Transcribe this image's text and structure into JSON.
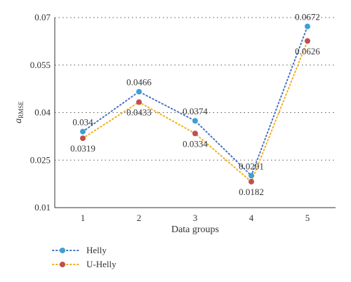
{
  "chart_data": {
    "type": "line",
    "categories": [
      "1",
      "2",
      "3",
      "4",
      "5"
    ],
    "xlabel": "Data groups",
    "ylabel_main": "a",
    "ylabel_sub": "RMSE",
    "ylim": [
      0.01,
      0.07
    ],
    "yticks": [
      0.01,
      0.025,
      0.04,
      0.055,
      0.07
    ],
    "ytick_labels": [
      "0.01",
      "0.025",
      "0.04",
      "0.055",
      "0.07"
    ],
    "grid": "horizontal dotted",
    "legend_placement": "bottom-left",
    "series": [
      {
        "name": "Helly",
        "values": [
          0.034,
          0.0466,
          0.0374,
          0.0201,
          0.0672
        ],
        "labels": [
          "0.034",
          "0.0466",
          "0.0374",
          "0.0201",
          "0.0672"
        ],
        "marker_color": "#3d9fd6",
        "line_color": "#4a72c4"
      },
      {
        "name": "U-Helly",
        "values": [
          0.0319,
          0.0433,
          0.0334,
          0.0182,
          0.0626
        ],
        "labels": [
          "0.0319",
          "0.0433",
          "0.0334",
          "0.0182",
          "0.0626"
        ],
        "marker_color": "#c0504d",
        "line_color": "#f2b01e"
      }
    ]
  }
}
